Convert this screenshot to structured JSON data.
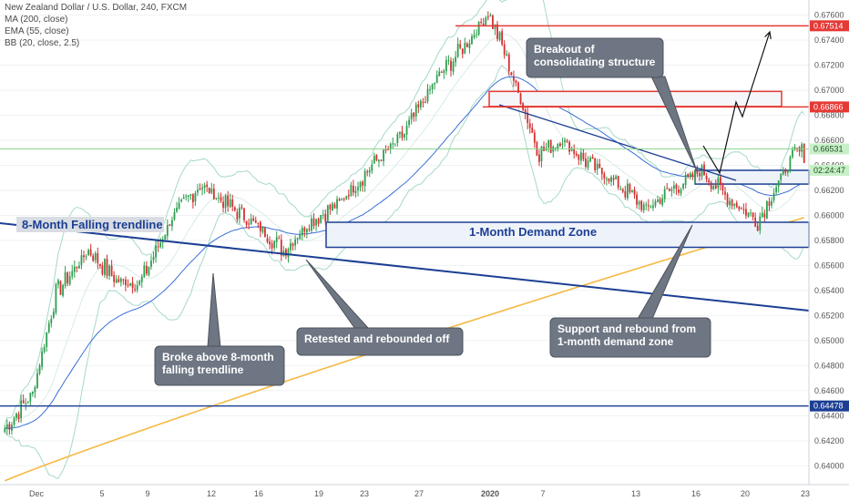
{
  "legend": {
    "title": "New Zealand Dollar / U.S. Dollar, 240, FXCM",
    "ma": "MA (200, close)",
    "ema": "EMA (55, close)",
    "bb": "BB (20, close, 2.5)"
  },
  "colors": {
    "bull": "#2e9e4f",
    "bear": "#d32f2f",
    "ma": "#f5b942",
    "ema": "#3a6fd8",
    "bb": "#a6d9c7",
    "trend": "#1c3f94",
    "resistance": "#e53935",
    "callout": "#6e7683"
  },
  "chart_data": {
    "type": "candlestick",
    "ylim": [
      0.6385,
      0.6772
    ],
    "y_ticks": [
      "0.67600",
      "0.67400",
      "0.67200",
      "0.67000",
      "0.66800",
      "0.66600",
      "0.66400",
      "0.66200",
      "0.66000",
      "0.65800",
      "0.65600",
      "0.65400",
      "0.65200",
      "0.65000",
      "0.64800",
      "0.64600",
      "0.64400",
      "0.64200",
      "0.64000"
    ],
    "x_ticks": [
      "Dec",
      "5",
      "9",
      "12",
      "16",
      "19",
      "23",
      "27",
      "2020",
      "7",
      "13",
      "16",
      "20",
      "23"
    ],
    "price_tags": [
      {
        "label": "0.67514",
        "value": 0.67514,
        "kind": "red"
      },
      {
        "label": "0.66866",
        "value": 0.66866,
        "kind": "red"
      },
      {
        "label": "0.66531",
        "value": 0.66531,
        "kind": "green"
      },
      {
        "label": "02:24:47",
        "value": 0.6636,
        "kind": "green"
      },
      {
        "label": "0.64478",
        "value": 0.64478,
        "kind": "blue"
      }
    ],
    "key_points": [
      [
        0,
        0.643
      ],
      [
        12,
        0.6458
      ],
      [
        22,
        0.6538
      ],
      [
        36,
        0.6572
      ],
      [
        48,
        0.6548
      ],
      [
        58,
        0.6545
      ],
      [
        72,
        0.6598
      ],
      [
        84,
        0.6625
      ],
      [
        96,
        0.6608
      ],
      [
        108,
        0.6593
      ],
      [
        120,
        0.6572
      ],
      [
        132,
        0.6596
      ],
      [
        144,
        0.661
      ],
      [
        158,
        0.664
      ],
      [
        172,
        0.6665
      ],
      [
        186,
        0.671
      ],
      [
        200,
        0.674
      ],
      [
        208,
        0.6762
      ],
      [
        214,
        0.6735
      ],
      [
        222,
        0.6692
      ],
      [
        230,
        0.665
      ],
      [
        240,
        0.666
      ],
      [
        252,
        0.664
      ],
      [
        264,
        0.6625
      ],
      [
        276,
        0.6605
      ],
      [
        288,
        0.6622
      ],
      [
        300,
        0.6636
      ],
      [
        312,
        0.6612
      ],
      [
        324,
        0.6596
      ],
      [
        334,
        0.663
      ],
      [
        340,
        0.665
      ]
    ],
    "annotations": {
      "falling_trendline": "8-Month Falling trendline",
      "demand_zone": "1-Month Demand Zone",
      "callout_breakout": [
        "Breakout of",
        "consolidating structure"
      ],
      "callout_broke": [
        "Broke above 8-month",
        "falling trendline"
      ],
      "callout_retested": [
        "Retested and rebounded off"
      ],
      "callout_support": [
        "Support and rebound from",
        "1-month demand zone"
      ]
    }
  }
}
